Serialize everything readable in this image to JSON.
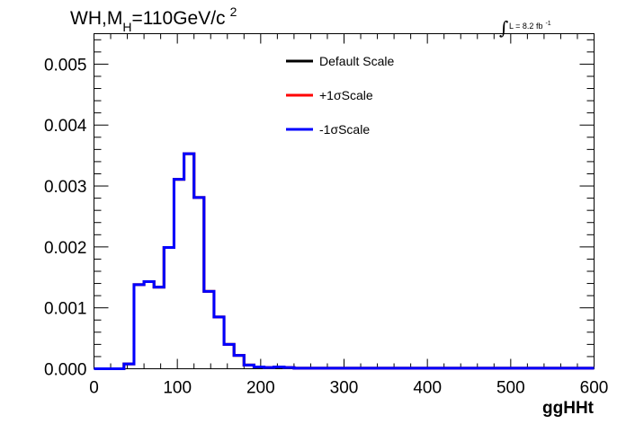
{
  "chart_data": {
    "type": "line",
    "title": "WH,M",
    "title_sub": "H",
    "title_rest": "=110GeV/c",
    "title_sup": "2",
    "lumi_label": "L = 8.2 fb",
    "lumi_sup": "-1",
    "xlabel": "ggHHt",
    "ylabel": "",
    "xlim": [
      0,
      600
    ],
    "ylim": [
      0,
      0.0055
    ],
    "x_ticks": [
      0,
      100,
      200,
      300,
      400,
      500,
      600
    ],
    "x_tick_labels": [
      "0",
      "100",
      "200",
      "300",
      "400",
      "500",
      "600"
    ],
    "y_ticks": [
      0.0,
      0.001,
      0.002,
      0.003,
      0.004,
      0.005
    ],
    "y_tick_labels": [
      "0.000",
      "0.001",
      "0.002",
      "0.003",
      "0.004",
      "0.005"
    ],
    "grid": false,
    "legend_position": "top-center",
    "bin_width": 12,
    "bin_edges_start": 0,
    "series": [
      {
        "name": "Default Scale",
        "color": "#000000",
        "values": [
          0,
          0,
          0,
          8e-05,
          0.00138,
          0.00143,
          0.00134,
          0.00199,
          0.00311,
          0.00353,
          0.00281,
          0.00127,
          0.00085,
          0.0004,
          0.00022,
          6e-05,
          3e-05,
          2e-05,
          3e-05,
          2e-05,
          1e-05,
          1e-05,
          1e-05,
          1e-05,
          1e-05,
          1e-05,
          1e-05,
          1e-05,
          1e-05,
          1e-05,
          1e-05,
          1e-05,
          1e-05,
          1e-05,
          1e-05,
          1e-05,
          1e-05,
          1e-05,
          1e-05,
          1e-05,
          1e-05,
          1e-05,
          1e-05,
          1e-05,
          1e-05,
          1e-05,
          1e-05,
          1e-05,
          1e-05,
          1e-05
        ]
      },
      {
        "name": "+1σScale",
        "color": "#ff0000",
        "values": [
          0,
          0,
          0,
          8e-05,
          0.00138,
          0.00143,
          0.00134,
          0.00199,
          0.00311,
          0.00353,
          0.00281,
          0.00127,
          0.00085,
          0.0004,
          0.00022,
          6e-05,
          3e-05,
          2e-05,
          3e-05,
          2e-05,
          1e-05,
          1e-05,
          1e-05,
          1e-05,
          1e-05,
          1e-05,
          1e-05,
          1e-05,
          1e-05,
          1e-05,
          1e-05,
          1e-05,
          1e-05,
          1e-05,
          1e-05,
          1e-05,
          1e-05,
          1e-05,
          1e-05,
          1e-05,
          1e-05,
          1e-05,
          1e-05,
          1e-05,
          1e-05,
          1e-05,
          1e-05,
          1e-05,
          1e-05,
          1e-05
        ]
      },
      {
        "name": "-1σScale",
        "color": "#0000ff",
        "values": [
          0,
          0,
          0,
          8e-05,
          0.00138,
          0.00143,
          0.00134,
          0.00199,
          0.00311,
          0.00353,
          0.00281,
          0.00127,
          0.00085,
          0.0004,
          0.00022,
          6e-05,
          3e-05,
          2e-05,
          3e-05,
          2e-05,
          1e-05,
          1e-05,
          1e-05,
          1e-05,
          1e-05,
          1e-05,
          1e-05,
          1e-05,
          1e-05,
          1e-05,
          1e-05,
          1e-05,
          1e-05,
          1e-05,
          1e-05,
          1e-05,
          1e-05,
          1e-05,
          1e-05,
          1e-05,
          1e-05,
          1e-05,
          1e-05,
          1e-05,
          1e-05,
          1e-05,
          1e-05,
          1e-05,
          1e-05,
          1e-05
        ]
      }
    ]
  }
}
